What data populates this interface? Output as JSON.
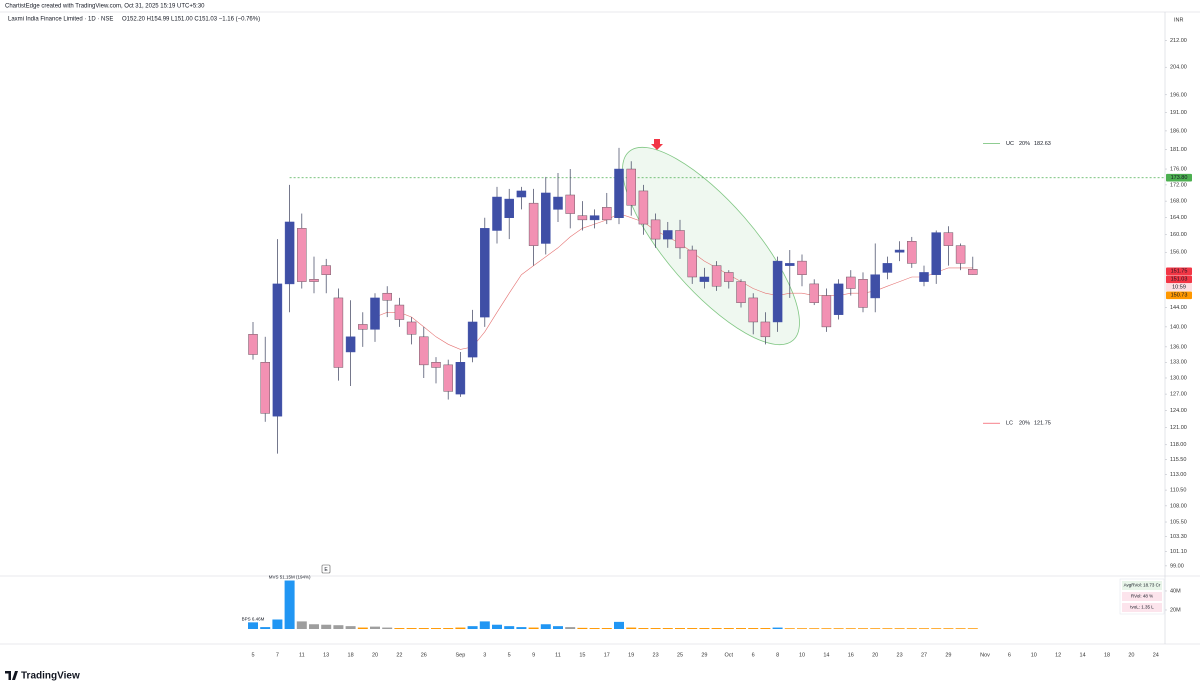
{
  "header": {
    "credit": "ChartistEdge created with TradingView.com, Oct 31, 2025 15:19 UTC+5:30",
    "symbol": "Laxmi India Finance Limited · 1D · NSE",
    "ohlc": "O152.20 H154.99 L151.00 C151.03 −1.16 (−0.76%)",
    "currency": "INR",
    "logo": "TradingView",
    "event_marker": "E"
  },
  "chart_data": {
    "type": "candlestick",
    "log_scale": true,
    "grid": false,
    "up_color": "#3f4fa6",
    "down_color": "#f291b3",
    "categories": [
      "5",
      null,
      "7",
      null,
      "11",
      null,
      "13",
      null,
      "18",
      null,
      "20",
      null,
      "22",
      null,
      "26",
      null,
      null,
      "Sep",
      null,
      "3",
      null,
      "5",
      null,
      "9",
      null,
      "11",
      null,
      "15",
      null,
      "17",
      null,
      "19",
      null,
      "23",
      null,
      "25",
      null,
      "29",
      null,
      "Oct",
      null,
      "6",
      null,
      "8",
      null,
      "10",
      null,
      "14",
      null,
      "16",
      null,
      "20",
      null,
      "23",
      null,
      "27",
      null,
      "29",
      null,
      null,
      "Nov",
      null,
      "6",
      null,
      "10",
      null,
      "12",
      null,
      "14",
      null,
      "18",
      null,
      "20",
      null,
      "24"
    ],
    "open": [
      138.5,
      133,
      123,
      149,
      161.5,
      150,
      153,
      146,
      135,
      140.5,
      139.5,
      147,
      144.5,
      141,
      138,
      133,
      132.5,
      127,
      134,
      142,
      161,
      164,
      169,
      167.5,
      158,
      166,
      169.5,
      164.5,
      163.5,
      166.5,
      164,
      176,
      170.5,
      163.5,
      159,
      161,
      156.5,
      149.5,
      153,
      151.5,
      149.5,
      146,
      141,
      141,
      153,
      154,
      149,
      146.5,
      142.5,
      150.5,
      150,
      146,
      151.5,
      156,
      158.5,
      149.5,
      151,
      160.5,
      157.5,
      152.2,
      null,
      null,
      null,
      null,
      null,
      null,
      null,
      null,
      null,
      null,
      null,
      null,
      null,
      null,
      null
    ],
    "high": [
      141,
      138,
      159,
      172,
      165,
      155,
      154.5,
      148,
      145.5,
      143,
      147,
      148.5,
      146,
      142,
      140,
      134,
      133.5,
      135,
      143.5,
      164,
      171.5,
      171,
      171.5,
      171,
      174,
      175,
      176,
      168,
      166,
      170,
      181.5,
      178,
      172,
      165,
      163,
      163.5,
      157.5,
      152.5,
      154,
      152,
      150,
      147,
      143,
      155,
      156.5,
      155.5,
      150,
      148,
      150,
      152,
      151.5,
      158,
      155,
      158.5,
      159.5,
      153,
      161,
      162,
      158,
      154.99,
      null,
      null,
      null,
      null,
      null,
      null,
      null,
      null,
      null,
      null,
      null,
      null,
      null,
      null,
      null
    ],
    "low": [
      133.5,
      122,
      116.5,
      143,
      148,
      147,
      147,
      129.5,
      128.5,
      136,
      137,
      142,
      140,
      136.5,
      130,
      129,
      126,
      126.5,
      133,
      140,
      158,
      159,
      166,
      153,
      155.5,
      163,
      161.5,
      161,
      161.5,
      162.5,
      162.5,
      164.5,
      160,
      157,
      157,
      154.5,
      149,
      148,
      147.5,
      148,
      144,
      138.5,
      136.5,
      139,
      146,
      148.5,
      144.5,
      139,
      141.5,
      146.5,
      143,
      143,
      150,
      154,
      152.5,
      148.5,
      149,
      153,
      152,
      151,
      null,
      null,
      null,
      null,
      null,
      null,
      null,
      null,
      null,
      null,
      null,
      null,
      null,
      null,
      null
    ],
    "close": [
      134.5,
      123.5,
      149,
      163,
      149.5,
      149.5,
      151,
      132,
      138,
      139.5,
      146,
      145.5,
      141.5,
      138.5,
      132.5,
      132,
      127.5,
      133,
      141,
      161.5,
      169,
      168.5,
      170.5,
      157.5,
      170,
      169,
      165,
      163.5,
      164.5,
      163.5,
      176,
      167,
      162.5,
      159,
      161,
      157,
      150.5,
      150.5,
      148.5,
      149.5,
      145,
      141,
      138,
      154,
      153.5,
      151,
      145,
      140,
      149,
      148,
      144,
      151,
      153.5,
      156.5,
      153.5,
      151.5,
      160.5,
      157.5,
      153.5,
      151.03,
      null,
      null,
      null,
      null,
      null,
      null,
      null,
      null,
      null,
      null,
      null,
      null,
      null,
      null,
      null
    ],
    "ma": {
      "color": "#e57373",
      "values": [
        null,
        null,
        null,
        null,
        null,
        null,
        null,
        null,
        null,
        null,
        142,
        143,
        143,
        142,
        140,
        138,
        136.5,
        135.5,
        136,
        139,
        143,
        147,
        151,
        153,
        155,
        157,
        159.5,
        161.5,
        162.5,
        163.5,
        165,
        164,
        163,
        161,
        159.5,
        158,
        156,
        154,
        152.5,
        151,
        149.5,
        148,
        147,
        146.5,
        147,
        147,
        146.5,
        146.5,
        146.5,
        147,
        147,
        147.5,
        148.5,
        149.5,
        150.5,
        150.5,
        151.5,
        152.5,
        152.5,
        152.5,
        null,
        null,
        null,
        null,
        null,
        null,
        null,
        null,
        null,
        null,
        null,
        null,
        null,
        null,
        null
      ]
    },
    "ylim": [
      97.7,
      221
    ],
    "yticks": [
      {
        "value": 212,
        "label": "212.00"
      },
      {
        "value": 204,
        "label": "204.00"
      },
      {
        "value": 196,
        "label": "196.00"
      },
      {
        "value": 191,
        "label": "191.00"
      },
      {
        "value": 186,
        "label": "186.00"
      },
      {
        "value": 181,
        "label": "181.00"
      },
      {
        "value": 176,
        "label": "176.00"
      },
      {
        "value": 172,
        "label": "172.00"
      },
      {
        "value": 168,
        "label": "168.00"
      },
      {
        "value": 164,
        "label": "164.00"
      },
      {
        "value": 160,
        "label": "160.00"
      },
      {
        "value": 156,
        "label": "156.00"
      },
      {
        "value": 144,
        "label": "144.00"
      },
      {
        "value": 140,
        "label": "140.00"
      },
      {
        "value": 136,
        "label": "136.00"
      },
      {
        "value": 133,
        "label": "133.00"
      },
      {
        "value": 130,
        "label": "130.00"
      },
      {
        "value": 127,
        "label": "127.00"
      },
      {
        "value": 124,
        "label": "124.00"
      },
      {
        "value": 121,
        "label": "121.00"
      },
      {
        "value": 118,
        "label": "118.00"
      },
      {
        "value": 115.5,
        "label": "115.50"
      },
      {
        "value": 113,
        "label": "113.00"
      },
      {
        "value": 110.5,
        "label": "110.50"
      },
      {
        "value": 108,
        "label": "108.00"
      },
      {
        "value": 105.5,
        "label": "105.50"
      },
      {
        "value": 103.3,
        "label": "103.30"
      },
      {
        "value": 101.1,
        "label": "101.10"
      },
      {
        "value": 99,
        "label": "99.00"
      }
    ],
    "level": {
      "value": 173.8,
      "color": "#4caf50"
    },
    "price_tags": [
      {
        "value": 173.8,
        "label": "173.80",
        "color": "#4caf50"
      },
      {
        "value": 151.75,
        "label": "151.75",
        "color": "#f23645"
      },
      {
        "value": 151.03,
        "label": "151.03",
        "color": "#f23645"
      },
      {
        "value": 150.73,
        "label": "150.73",
        "color": "#ff9800"
      }
    ],
    "countdown": "10:59",
    "limits": [
      {
        "label": "UC",
        "pct": "20%",
        "value": 182.63,
        "color": "#4caf50"
      },
      {
        "label": "LC",
        "pct": "20%",
        "value": 121.75,
        "color": "#f23645"
      }
    ],
    "volume": {
      "values": [
        7,
        2,
        10,
        51,
        8,
        5,
        4.5,
        4,
        3,
        1.5,
        2.5,
        1.5,
        1,
        1,
        1,
        1,
        1,
        1.5,
        3,
        8,
        4.5,
        3,
        2,
        1.5,
        5,
        3,
        2,
        1.2,
        1,
        1,
        7.5,
        1.5,
        1,
        1,
        1,
        1,
        1,
        1,
        1,
        1,
        1,
        1,
        1,
        1.5,
        0.8,
        0.8,
        0.8,
        0.8,
        0.8,
        0.8,
        0.8,
        0.8,
        0.8,
        0.8,
        0.8,
        0.8,
        0.8,
        0.8,
        0.8,
        0.8,
        null,
        null,
        null,
        null,
        null,
        null,
        null,
        null,
        null,
        null,
        null,
        null,
        null,
        null,
        null
      ],
      "colors": [
        "#2196f3",
        "#2196f3",
        "#2196f3",
        "#2196f3",
        "#9e9e9e",
        "#9e9e9e",
        "#9e9e9e",
        "#9e9e9e",
        "#9e9e9e",
        "#ff9800",
        "#9e9e9e",
        "#9e9e9e",
        "#ff9800",
        "#ff9800",
        "#ff9800",
        "#ff9800",
        "#ff9800",
        "#ff9800",
        "#2196f3",
        "#2196f3",
        "#2196f3",
        "#2196f3",
        "#2196f3",
        "#ff9800",
        "#2196f3",
        "#2196f3",
        "#9e9e9e",
        "#ff9800",
        "#ff9800",
        "#ff9800",
        "#2196f3",
        "#ff9800",
        "#ff9800",
        "#ff9800",
        "#ff9800",
        "#ff9800",
        "#ff9800",
        "#ff9800",
        "#ff9800",
        "#ff9800",
        "#ff9800",
        "#ff9800",
        "#ff9800",
        "#2196f3",
        "#ff9800",
        "#ff9800",
        "#ff9800",
        "#ff9800",
        "#ff9800",
        "#ff9800",
        "#ff9800",
        "#ff9800",
        "#ff9800",
        "#ff9800",
        "#ff9800",
        "#ff9800",
        "#ff9800",
        "#ff9800",
        "#ff9800",
        "#ff9800",
        null,
        null,
        null,
        null,
        null,
        null,
        null,
        null,
        null,
        null,
        null,
        null,
        null,
        null,
        null
      ],
      "ylim": [
        0,
        54.7
      ],
      "yticks": [
        {
          "value": 20,
          "label": "20M"
        },
        {
          "value": 40,
          "label": "40M"
        }
      ],
      "annotations": [
        {
          "label": "BPS 6.46M",
          "index": 0
        },
        {
          "label": "MVS 51.15M (194%)",
          "index": 3
        }
      ],
      "stats": [
        "AvgRVol: 18.73 Cr",
        "RVol: 48 %",
        "tvoL: 1.35 L"
      ]
    }
  }
}
